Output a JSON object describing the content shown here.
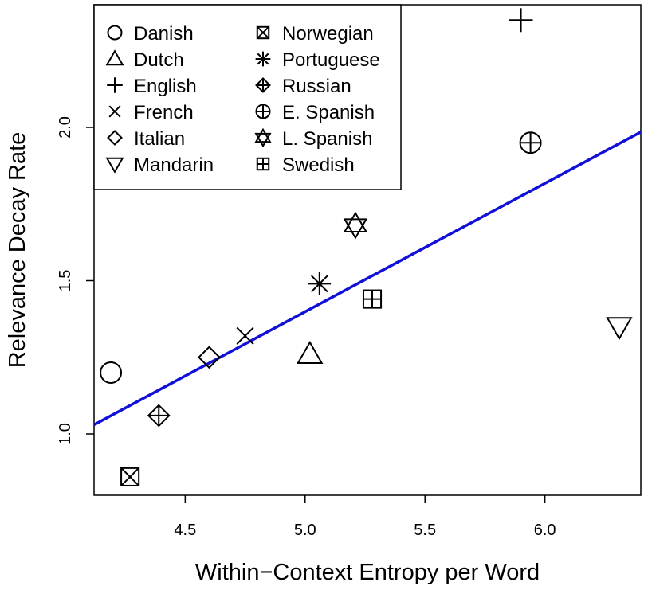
{
  "chart_data": {
    "type": "scatter",
    "xlabel": "Within−Context Entropy per Word",
    "ylabel": "Relevance Decay Rate",
    "xlim": [
      4.12,
      6.4
    ],
    "ylim": [
      0.8,
      2.4
    ],
    "x_ticks": [
      "4.5",
      "5.0",
      "5.5",
      "6.0"
    ],
    "x_tick_values": [
      4.5,
      5.0,
      5.5,
      6.0
    ],
    "y_ticks": [
      "1.0",
      "1.5",
      "2.0"
    ],
    "y_tick_values": [
      1.0,
      1.5,
      2.0
    ],
    "legend_position": "top-left",
    "fit_line": {
      "color": "#1010d8",
      "x": [
        4.12,
        6.4
      ],
      "y": [
        1.03,
        1.985
      ]
    },
    "series": [
      {
        "name": "Danish",
        "marker": "circle",
        "x": 4.19,
        "y": 1.2
      },
      {
        "name": "Dutch",
        "marker": "triangle-up",
        "x": 5.02,
        "y": 1.26
      },
      {
        "name": "English",
        "marker": "plus",
        "x": 5.9,
        "y": 2.35
      },
      {
        "name": "French",
        "marker": "cross",
        "x": 4.75,
        "y": 1.32
      },
      {
        "name": "Italian",
        "marker": "diamond",
        "x": 4.6,
        "y": 1.25
      },
      {
        "name": "Mandarin",
        "marker": "triangle-down",
        "x": 6.31,
        "y": 1.35
      },
      {
        "name": "Norwegian",
        "marker": "square-cross",
        "x": 4.27,
        "y": 0.86
      },
      {
        "name": "Portuguese",
        "marker": "asterisk",
        "x": 5.06,
        "y": 1.49
      },
      {
        "name": "Russian",
        "marker": "diamond-plus",
        "x": 4.39,
        "y": 1.06
      },
      {
        "name": "E. Spanish",
        "marker": "circle-plus",
        "x": 5.94,
        "y": 1.95
      },
      {
        "name": "L. Spanish",
        "marker": "star-of-david",
        "x": 5.21,
        "y": 1.68
      },
      {
        "name": "Swedish",
        "marker": "square-plus",
        "x": 5.28,
        "y": 1.44
      }
    ],
    "legend": [
      [
        "Danish",
        "Dutch",
        "English",
        "French",
        "Italian",
        "Mandarin"
      ],
      [
        "Norwegian",
        "Portuguese",
        "Russian",
        "E. Spanish",
        "L. Spanish",
        "Swedish"
      ]
    ]
  }
}
